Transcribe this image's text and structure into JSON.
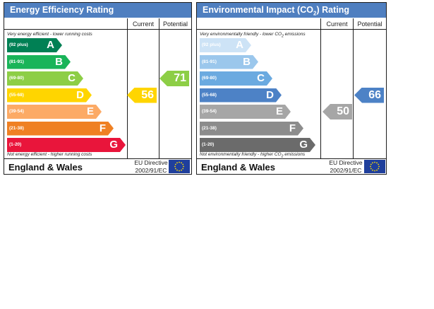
{
  "energy": {
    "title": "Energy Efficiency Rating",
    "col_current": "Current",
    "col_potential": "Potential",
    "top_note": "Very energy efficient - lower running costs",
    "bottom_note": "Not energy efficient - higher running costs",
    "region": "England & Wales",
    "directive_line1": "EU Directive",
    "directive_line2": "2002/91/EC",
    "bands": [
      {
        "range": "(92 plus)",
        "letter": "A",
        "color": "#008054"
      },
      {
        "range": "(81-91)",
        "letter": "B",
        "color": "#19b459"
      },
      {
        "range": "(69-80)",
        "letter": "C",
        "color": "#8dce46"
      },
      {
        "range": "(55-68)",
        "letter": "D",
        "color": "#ffd500"
      },
      {
        "range": "(39-54)",
        "letter": "E",
        "color": "#fcaa65"
      },
      {
        "range": "(21-38)",
        "letter": "F",
        "color": "#ef8023"
      },
      {
        "range": "(1-20)",
        "letter": "G",
        "color": "#e9153b"
      }
    ],
    "current": {
      "value": "56",
      "color": "#ffd500"
    },
    "potential": {
      "value": "71",
      "color": "#8dce46"
    }
  },
  "environment": {
    "title_main": "Environmental Impact (CO",
    "title_sub": "2",
    "title_end": ") Rating",
    "col_current": "Current",
    "col_potential": "Potential",
    "top_note_main": "Very environmentally friendly - lower CO",
    "top_note_sub": "2",
    "top_note_end": " emissions",
    "bottom_note_main": "Not environmentally friendly - higher CO",
    "bottom_note_sub": "2",
    "bottom_note_end": " emissions",
    "region": "England & Wales",
    "directive_line1": "EU Directive",
    "directive_line2": "2002/91/EC",
    "bands": [
      {
        "range": "(92 plus)",
        "letter": "A",
        "color": "#cde3f6"
      },
      {
        "range": "(81-91)",
        "letter": "B",
        "color": "#9bc7ec"
      },
      {
        "range": "(69-80)",
        "letter": "C",
        "color": "#6baae0"
      },
      {
        "range": "(55-68)",
        "letter": "D",
        "color": "#4d82c6"
      },
      {
        "range": "(39-54)",
        "letter": "E",
        "color": "#a6a6a6"
      },
      {
        "range": "(21-38)",
        "letter": "F",
        "color": "#8c8c8c"
      },
      {
        "range": "(1-20)",
        "letter": "G",
        "color": "#6b6b6b"
      }
    ],
    "current": {
      "value": "50",
      "color": "#a6a6a6"
    },
    "potential": {
      "value": "66",
      "color": "#4d82c6"
    }
  },
  "colors": {
    "header_blue": "#4f7fc0",
    "eu_flag_blue": "#1f3f9c",
    "eu_star_yellow": "#ffdd00"
  },
  "icons": [
    "eu-flag-icon"
  ]
}
